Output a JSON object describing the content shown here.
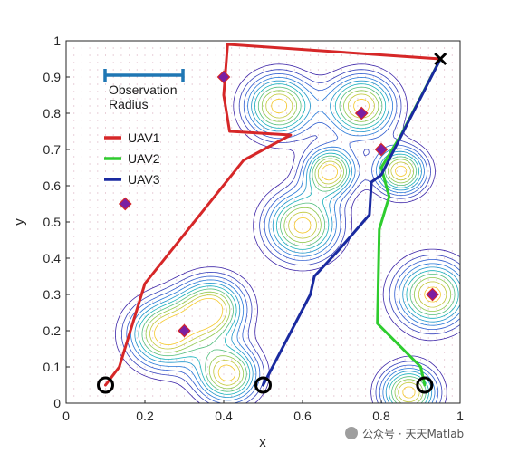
{
  "chart_data": {
    "type": "line",
    "title": "",
    "xlabel": "x",
    "ylabel": "y",
    "xlim": [
      0,
      1
    ],
    "ylim": [
      0,
      1
    ],
    "xticks": [
      "0",
      "0.2",
      "0.4",
      "0.6",
      "0.8",
      "1"
    ],
    "yticks": [
      "0",
      "0.1",
      "0.2",
      "0.3",
      "0.4",
      "0.5",
      "0.6",
      "0.7",
      "0.8",
      "0.9",
      "1"
    ],
    "grid": "dotted-points",
    "legend_position": "top-left",
    "observation_radius_label": "Observation Radius",
    "observation_radius_color": "#1f77b4",
    "series": [
      {
        "name": "UAV1",
        "color": "#d62728",
        "x": [
          0.1,
          0.135,
          0.2,
          0.45,
          0.57,
          0.415,
          0.4,
          0.41,
          0.95
        ],
        "y": [
          0.05,
          0.1,
          0.33,
          0.67,
          0.74,
          0.75,
          0.85,
          0.99,
          0.95
        ]
      },
      {
        "name": "UAV2",
        "color": "#2ecc2e",
        "x": [
          0.91,
          0.9,
          0.79,
          0.795,
          0.82,
          0.8,
          0.85,
          0.95
        ],
        "y": [
          0.05,
          0.1,
          0.22,
          0.48,
          0.57,
          0.65,
          0.74,
          0.95
        ]
      },
      {
        "name": "UAV3",
        "color": "#1a2aa0",
        "x": [
          0.5,
          0.62,
          0.63,
          0.69,
          0.77,
          0.775,
          0.8,
          0.95
        ],
        "y": [
          0.05,
          0.3,
          0.35,
          0.42,
          0.52,
          0.61,
          0.63,
          0.95
        ]
      }
    ],
    "start_points": [
      [
        0.1,
        0.05
      ],
      [
        0.5,
        0.05
      ],
      [
        0.91,
        0.05
      ]
    ],
    "goal_point": [
      0.95,
      0.95
    ],
    "targets": [
      [
        0.4,
        0.9
      ],
      [
        0.75,
        0.8
      ],
      [
        0.8,
        0.7
      ],
      [
        0.15,
        0.55
      ],
      [
        0.3,
        0.2
      ],
      [
        0.93,
        0.3
      ]
    ],
    "target_color": "#7b1fa2",
    "target_edge_color": "#d62728",
    "contour_peaks": [
      {
        "x": 0.54,
        "y": 0.82,
        "sigma": 0.06
      },
      {
        "x": 0.75,
        "y": 0.82,
        "sigma": 0.06
      },
      {
        "x": 0.67,
        "y": 0.64,
        "sigma": 0.045
      },
      {
        "x": 0.85,
        "y": 0.64,
        "sigma": 0.045
      },
      {
        "x": 0.6,
        "y": 0.49,
        "sigma": 0.065
      },
      {
        "x": 0.93,
        "y": 0.3,
        "sigma": 0.065
      },
      {
        "x": 0.25,
        "y": 0.19,
        "sigma": 0.065
      },
      {
        "x": 0.37,
        "y": 0.26,
        "sigma": 0.06
      },
      {
        "x": 0.41,
        "y": 0.08,
        "sigma": 0.055
      },
      {
        "x": 0.87,
        "y": 0.03,
        "sigma": 0.05
      }
    ]
  },
  "watermark": "公众号 · 天天Matlab"
}
